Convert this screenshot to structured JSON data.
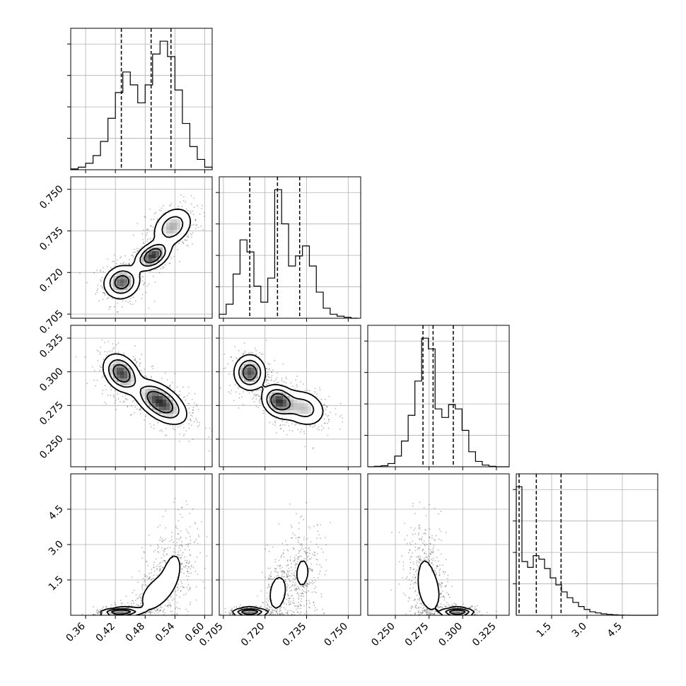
{
  "chart_data": {
    "type": "corner",
    "title": "",
    "n_params": 4,
    "parameters": [
      {
        "range": [
          0.33,
          0.615
        ],
        "ticks": [
          0.36,
          0.42,
          0.48,
          0.54,
          0.6
        ],
        "tick_labels": [
          "0.36",
          "0.42",
          "0.48",
          "0.54",
          "0.60"
        ],
        "quantiles": [
          0.432,
          0.492,
          0.532
        ],
        "hist": {
          "edges": [
            0.33,
            0.345,
            0.36,
            0.375,
            0.39,
            0.405,
            0.42,
            0.435,
            0.45,
            0.465,
            0.48,
            0.495,
            0.51,
            0.525,
            0.54,
            0.555,
            0.57,
            0.585,
            0.6,
            0.615
          ],
          "counts": [
            0.3,
            1.0,
            2.5,
            5.5,
            11.0,
            20.0,
            30.0,
            38.0,
            33.0,
            26.0,
            33.0,
            45.0,
            50.0,
            44.0,
            31.0,
            18.0,
            9.0,
            4.0,
            1.0
          ]
        }
      },
      {
        "range": [
          0.7035,
          0.7545
        ],
        "ticks": [
          0.705,
          0.72,
          0.735,
          0.75
        ],
        "tick_labels": [
          "0.705",
          "0.720",
          "0.735",
          "0.750"
        ],
        "quantiles": [
          0.7145,
          0.7245,
          0.7325
        ],
        "hist": {
          "edges": [
            0.7035,
            0.706,
            0.7085,
            0.711,
            0.7135,
            0.716,
            0.7185,
            0.721,
            0.7235,
            0.726,
            0.7285,
            0.731,
            0.7335,
            0.736,
            0.7385,
            0.741,
            0.7435,
            0.746,
            0.7485,
            0.751,
            0.7535
          ],
          "counts": [
            2.0,
            7.0,
            22.0,
            39.0,
            33.0,
            16.0,
            8.0,
            20.0,
            64.0,
            47.0,
            26.0,
            31.0,
            36.0,
            26.0,
            13.0,
            5.0,
            2.0,
            1.0,
            0.5,
            0.0
          ]
        }
      },
      {
        "range": [
          0.2295,
          0.3345
        ],
        "ticks": [
          0.25,
          0.275,
          0.3,
          0.325
        ],
        "tick_labels": [
          "0.250",
          "0.275",
          "0.300",
          "0.325"
        ],
        "quantiles": [
          0.2705,
          0.278,
          0.293
        ],
        "hist": {
          "edges": [
            0.2295,
            0.2345,
            0.2395,
            0.2445,
            0.2495,
            0.2545,
            0.2595,
            0.2645,
            0.2695,
            0.2745,
            0.2795,
            0.2845,
            0.2895,
            0.2945,
            0.2995,
            0.3045,
            0.3095,
            0.3145,
            0.3195,
            0.3245,
            0.3295,
            0.3345
          ],
          "counts": [
            0.0,
            0.2,
            0.5,
            1.5,
            5.0,
            12.0,
            24.0,
            40.0,
            60.0,
            55.0,
            27.0,
            23.0,
            29.0,
            27.0,
            17.0,
            7.0,
            2.5,
            0.8,
            0.2,
            0.0,
            0.0
          ]
        }
      },
      {
        "range": [
          0.0,
          6.0
        ],
        "ticks": [
          1.5,
          3.0,
          4.5
        ],
        "tick_labels": [
          "1.5",
          "3.0",
          "4.5"
        ],
        "quantiles": [
          0.12,
          0.85,
          1.9
        ],
        "hist": {
          "edges": [
            0.0,
            0.24,
            0.48,
            0.72,
            0.96,
            1.2,
            1.44,
            1.68,
            1.92,
            2.16,
            2.4,
            2.64,
            2.88,
            3.12,
            3.36,
            3.6,
            3.84,
            4.08,
            4.32,
            4.56,
            4.8,
            5.04,
            5.28,
            5.52,
            5.76,
            6.0
          ],
          "counts": [
            110.0,
            46.0,
            41.0,
            51.0,
            48.0,
            40.0,
            32.0,
            26.0,
            20.0,
            15.0,
            11.0,
            7.5,
            5.0,
            3.0,
            2.0,
            1.2,
            0.8,
            0.4,
            0.2,
            0.1,
            0.0,
            0.0,
            0.0,
            0.0,
            0.0
          ]
        }
      }
    ],
    "pairs": [
      {
        "row": 1,
        "col": 0,
        "modes": [
          {
            "mx": 0.433,
            "my": 0.7165,
            "sx": 0.018,
            "sy": 0.003,
            "rho": 0.1,
            "w": 0.35
          },
          {
            "mx": 0.495,
            "my": 0.726,
            "sx": 0.017,
            "sy": 0.0025,
            "rho": 0.4,
            "w": 0.33
          },
          {
            "mx": 0.535,
            "my": 0.7365,
            "sx": 0.02,
            "sy": 0.0035,
            "rho": 0.3,
            "w": 0.32
          }
        ]
      },
      {
        "row": 2,
        "col": 0,
        "modes": [
          {
            "mx": 0.432,
            "my": 0.299,
            "sx": 0.018,
            "sy": 0.007,
            "rho": -0.3,
            "w": 0.36
          },
          {
            "mx": 0.51,
            "my": 0.2775,
            "sx": 0.026,
            "sy": 0.008,
            "rho": -0.55,
            "w": 0.64
          }
        ]
      },
      {
        "row": 2,
        "col": 1,
        "modes": [
          {
            "mx": 0.7145,
            "my": 0.2995,
            "sx": 0.0028,
            "sy": 0.0065,
            "rho": 0.0,
            "w": 0.34
          },
          {
            "mx": 0.725,
            "my": 0.278,
            "sx": 0.003,
            "sy": 0.006,
            "rho": -0.2,
            "w": 0.36
          },
          {
            "mx": 0.734,
            "my": 0.273,
            "sx": 0.004,
            "sy": 0.007,
            "rho": -0.2,
            "w": 0.3
          }
        ]
      },
      {
        "row": 3,
        "col": 0,
        "modes": [
          {
            "mx": 0.43,
            "my": 0.12,
            "sx": 0.02,
            "sy": 0.1,
            "rho": 0.2,
            "w": 0.3
          },
          {
            "mx": 0.497,
            "my": 0.85,
            "sx": 0.02,
            "sy": 0.5,
            "rho": 0.4,
            "w": 0.32
          },
          {
            "mx": 0.535,
            "my": 1.9,
            "sx": 0.02,
            "sy": 0.85,
            "rho": 0.3,
            "w": 0.38
          }
        ]
      },
      {
        "row": 3,
        "col": 1,
        "modes": [
          {
            "mx": 0.7145,
            "my": 0.12,
            "sx": 0.003,
            "sy": 0.1,
            "rho": 0.0,
            "w": 0.33
          },
          {
            "mx": 0.7245,
            "my": 0.95,
            "sx": 0.0022,
            "sy": 0.55,
            "rho": 0.2,
            "w": 0.3
          },
          {
            "mx": 0.7335,
            "my": 1.8,
            "sx": 0.003,
            "sy": 0.8,
            "rho": 0.1,
            "w": 0.37
          }
        ]
      },
      {
        "row": 3,
        "col": 2,
        "modes": [
          {
            "mx": 0.296,
            "my": 0.12,
            "sx": 0.006,
            "sy": 0.1,
            "rho": 0.0,
            "w": 0.33
          },
          {
            "mx": 0.276,
            "my": 0.95,
            "sx": 0.005,
            "sy": 0.55,
            "rho": -0.2,
            "w": 0.32
          },
          {
            "mx": 0.272,
            "my": 1.8,
            "sx": 0.006,
            "sy": 0.85,
            "rho": -0.1,
            "w": 0.35
          }
        ]
      }
    ],
    "grid": true,
    "legend": "none"
  }
}
